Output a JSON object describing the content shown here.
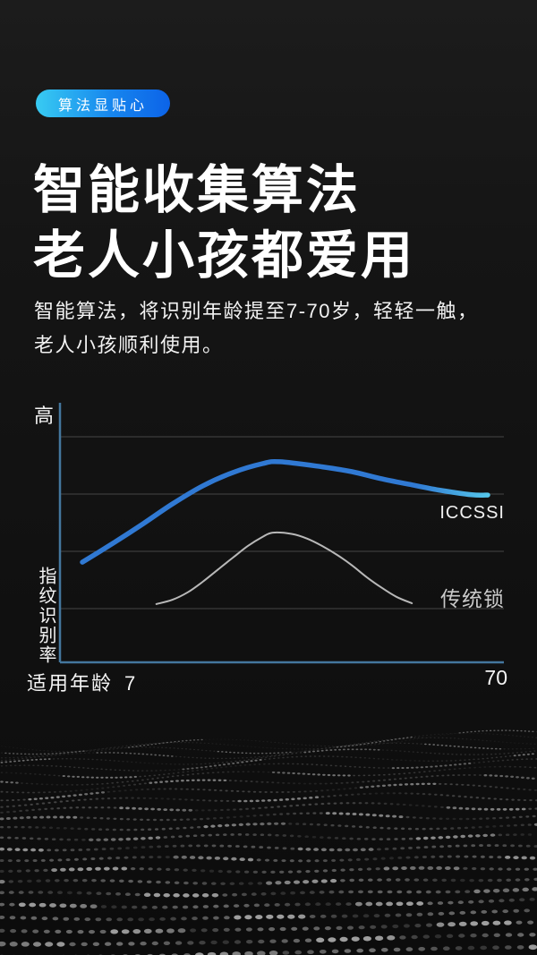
{
  "badge": {
    "label": "算法显贴心",
    "gradient_from": "#38cbf2",
    "gradient_to": "#0c63e8"
  },
  "heading": {
    "line1": "智能收集算法",
    "line2": "老人小孩都爱用"
  },
  "description": {
    "line1": "智能算法，将识别年龄提至7-70岁，轻轻一触，",
    "line2": "老人小孩顺利使用。"
  },
  "chart_data": {
    "type": "line",
    "title": "",
    "xlabel": "适用年龄",
    "ylabel": "指纹识别率",
    "y_top_label": "高",
    "x_ticks": [
      "7",
      "70"
    ],
    "x_range": [
      7,
      70
    ],
    "ylim": [
      0,
      100
    ],
    "grid": true,
    "gridline_count": 4,
    "axis_color": "#44779e",
    "grid_color": "#454545",
    "legend_position": "right-of-curves",
    "series": [
      {
        "name": "ICCSSI",
        "color": "#3079d3",
        "tip_color": "#55c6ea",
        "stroke_width": 5.5,
        "points": [
          [
            7,
            37.3
          ],
          [
            11.8,
            44.4
          ],
          [
            16.5,
            51.7
          ],
          [
            21,
            59
          ],
          [
            25.7,
            65.7
          ],
          [
            30.4,
            70.7
          ],
          [
            35,
            74
          ],
          [
            37.7,
            74.7
          ],
          [
            44.3,
            72.8
          ],
          [
            48.9,
            71
          ],
          [
            53.6,
            68.3
          ],
          [
            58.2,
            66.1
          ],
          [
            62.8,
            64
          ],
          [
            67.5,
            62.4
          ],
          [
            70,
            62.3
          ]
        ]
      },
      {
        "name": "传统锁",
        "color": "#b8b8b8",
        "stroke_width": 2,
        "points": [
          [
            18.5,
            21.7
          ],
          [
            21,
            23.3
          ],
          [
            23.4,
            26.1
          ],
          [
            25.7,
            30
          ],
          [
            28,
            34.4
          ],
          [
            30.4,
            39
          ],
          [
            32.7,
            43.3
          ],
          [
            35,
            46.7
          ],
          [
            36.6,
            48.3
          ],
          [
            39.6,
            47.8
          ],
          [
            41.9,
            46.1
          ],
          [
            44.3,
            43.3
          ],
          [
            46.6,
            40
          ],
          [
            48.9,
            36.1
          ],
          [
            51.2,
            31.7
          ],
          [
            53.5,
            27.8
          ],
          [
            55.8,
            24.4
          ],
          [
            58.2,
            22
          ]
        ]
      }
    ]
  },
  "decoration": {
    "name": "particle-wave",
    "dot_color": "#a6a6a6"
  }
}
